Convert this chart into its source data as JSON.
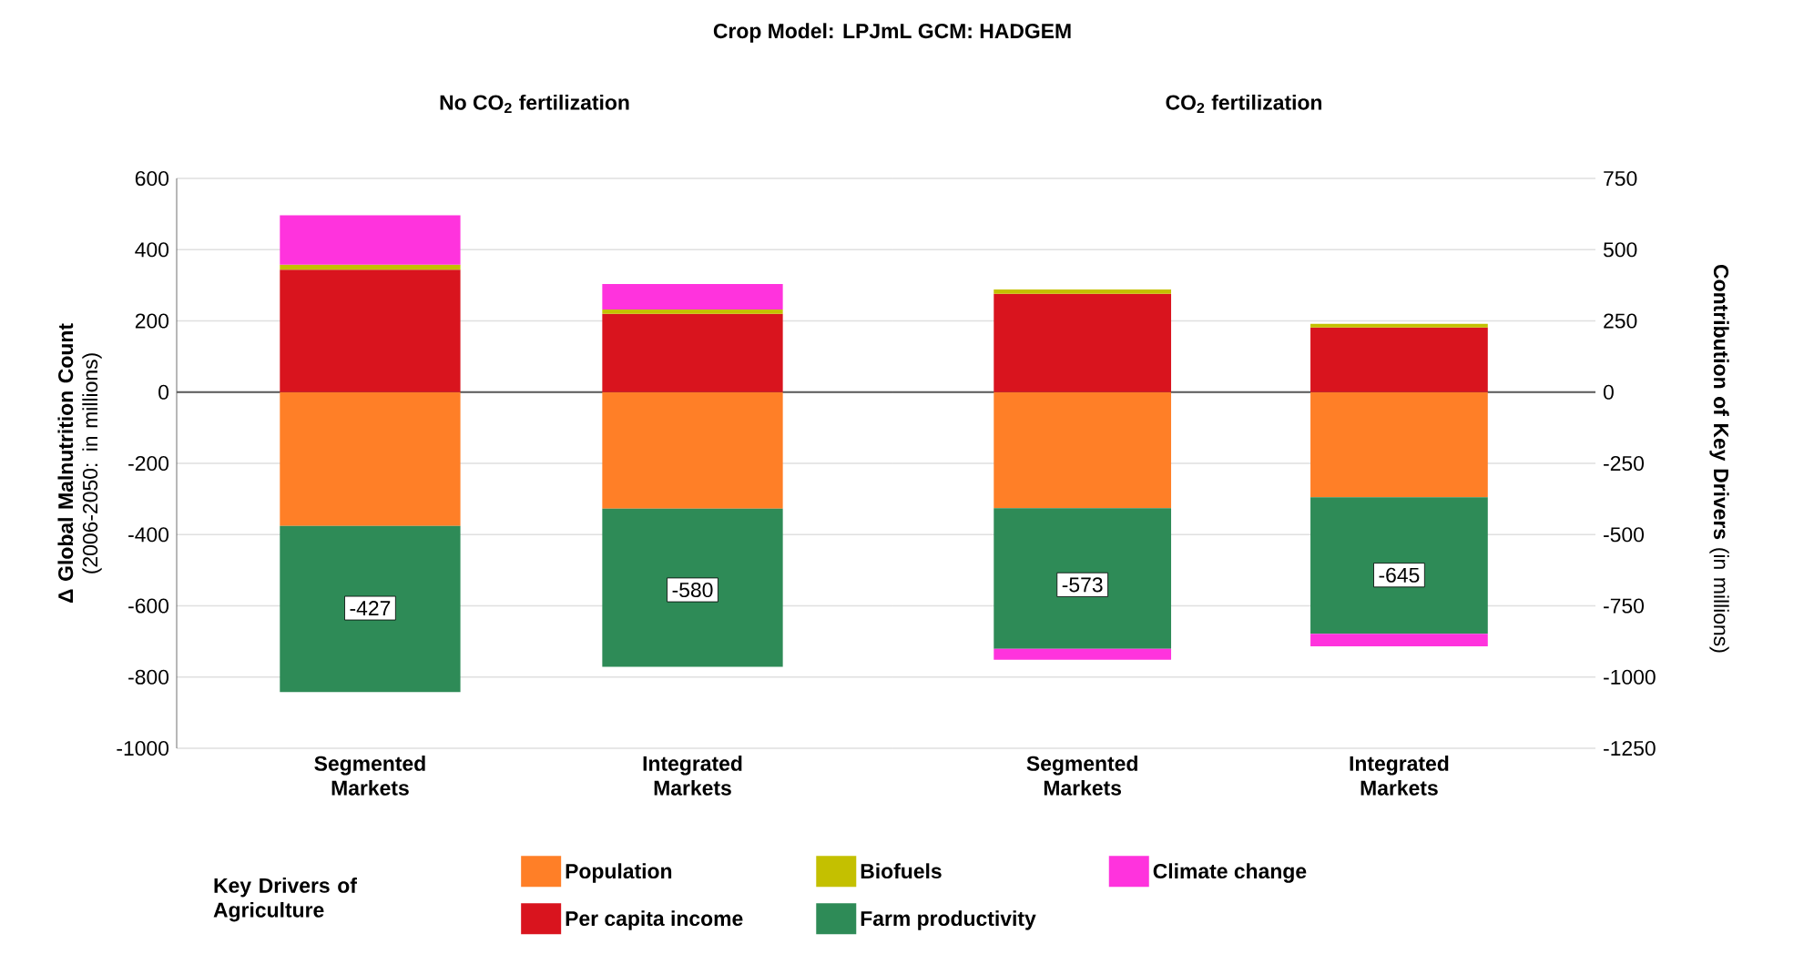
{
  "chart_data": [
    {
      "type": "bar",
      "stacked": true,
      "title": "Crop Model: LPJmL    GCM: HADGEM",
      "subtitle": "No CO$_{2}$ fertilization",
      "ylabel": "**Δ Global Malnutrition Count** (2006-2050: in millions)",
      "categories": [
        "Segmented Markets",
        "Integrated Markets"
      ],
      "ylim": [
        -1000,
        600
      ],
      "yticks": [
        -1000,
        -800,
        -600,
        -400,
        -200,
        0,
        200,
        400,
        600
      ],
      "y2lim": [
        -1250,
        750
      ],
      "grid": "y",
      "legend": "bottom",
      "legend_title": "Key Drivers of Agriculture",
      "totals": [
        "-427",
        "-580"
      ],
      "series": [
        {
          "name": "Population",
          "color": "#ff7f27",
          "axis": "y2",
          "values": [
            -470,
            -409
          ]
        },
        {
          "name": "Per capita income",
          "color": "#d9141e",
          "axis": "y2",
          "values": [
            430,
            275
          ]
        },
        {
          "name": "Biofuels",
          "color": "#c4c000",
          "axis": "y2",
          "values": [
            17,
            15
          ]
        },
        {
          "name": "Farm productivity",
          "color": "#2e8b57",
          "axis": "y2",
          "values": [
            -583,
            -555
          ]
        },
        {
          "name": "Climate change",
          "color": "#ff33dd",
          "axis": "y2",
          "values": [
            174,
            89
          ]
        }
      ]
    },
    {
      "type": "bar",
      "stacked": true,
      "subtitle": "CO$_{2}$ fertilization",
      "y2label": "**Contribution of Key Drivers** (in millions)",
      "categories": [
        "Segmented Markets",
        "Integrated Markets"
      ],
      "y2lim": [
        -1250,
        750
      ],
      "y2ticks": [
        -1250,
        -1000,
        -750,
        -500,
        -250,
        0,
        250,
        500,
        750
      ],
      "grid": "y",
      "totals": [
        "-573",
        "-645"
      ],
      "series": [
        {
          "color": "#ff7f27",
          "axis": "y2",
          "values": [
            -407,
            -369
          ]
        },
        {
          "color": "#d9141e",
          "axis": "y2",
          "values": [
            345,
            227
          ]
        },
        {
          "color": "#c4c000",
          "axis": "y2",
          "values": [
            15,
            13
          ]
        },
        {
          "color": "#2e8b57",
          "axis": "y2",
          "values": [
            -494,
            -479
          ]
        },
        {
          "color": "#ff33dd",
          "axis": "y2",
          "values": [
            -38,
            -44
          ]
        }
      ]
    }
  ]
}
